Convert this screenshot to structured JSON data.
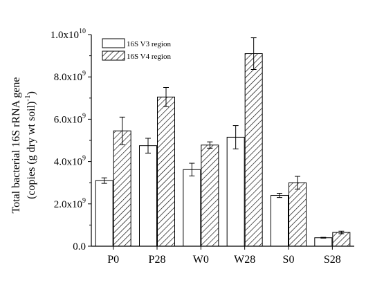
{
  "chart_data": {
    "type": "bar",
    "categories": [
      "P0",
      "P28",
      "W0",
      "W28",
      "S0",
      "S28"
    ],
    "series": [
      {
        "name": "16S V3 region",
        "values": [
          3100000000.0,
          4750000000.0,
          3620000000.0,
          5150000000.0,
          2400000000.0,
          400000000.0
        ],
        "errors": [
          130000000.0,
          350000000.0,
          300000000.0,
          550000000.0,
          100000000.0,
          20000000.0
        ],
        "pattern": "none"
      },
      {
        "name": "16S V4 region",
        "values": [
          5450000000.0,
          7050000000.0,
          4780000000.0,
          9100000000.0,
          3000000000.0,
          650000000.0
        ],
        "errors": [
          650000000.0,
          450000000.0,
          150000000.0,
          750000000.0,
          300000000.0,
          60000000.0
        ],
        "pattern": "diagonal-hatch"
      }
    ],
    "ylim": [
      0,
      10000000000.0
    ],
    "yticks": [
      {
        "value": 0,
        "mantissa": "0.0",
        "exp": ""
      },
      {
        "value": 2000000000.0,
        "mantissa": "2.0x10",
        "exp": "9"
      },
      {
        "value": 4000000000.0,
        "mantissa": "4.0x10",
        "exp": "9"
      },
      {
        "value": 6000000000.0,
        "mantissa": "6.0x10",
        "exp": "9"
      },
      {
        "value": 8000000000.0,
        "mantissa": "8.0x10",
        "exp": "9"
      },
      {
        "value": 10000000000.0,
        "mantissa": "1.0x10",
        "exp": "10"
      }
    ],
    "ylabel_line1": "Total bacterial 16S rRNA gene",
    "ylabel_line2_main": "(copies (g dry wt soil)",
    "ylabel_line2_sup": "-1",
    "ylabel_line2_end": ")",
    "xlabel": "",
    "legend_position": "top-left",
    "grid": false
  }
}
